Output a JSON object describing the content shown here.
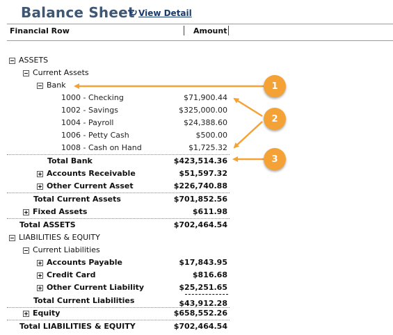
{
  "header": {
    "title": "Balance Sheet",
    "view_detail": "View Detail"
  },
  "columns": {
    "financial_row": "Financial Row",
    "amount": "Amount"
  },
  "rows": [
    {
      "label": "ASSETS",
      "amount": "",
      "toggle": "minus",
      "bold": false,
      "caps": true
    },
    {
      "label": "Current Assets",
      "amount": "",
      "toggle": "minus"
    },
    {
      "label": "Bank",
      "amount": "",
      "toggle": "minus"
    },
    {
      "label": "1000 - Checking",
      "amount": "$71,900.44"
    },
    {
      "label": "1002 - Savings",
      "amount": "$325,000.00"
    },
    {
      "label": "1004 - Payroll",
      "amount": "$24,388.60"
    },
    {
      "label": "1006 - Petty Cash",
      "amount": "$500.00"
    },
    {
      "label": "1008 - Cash on Hand",
      "amount": "$1,725.32"
    },
    {
      "label": "Total Bank",
      "amount": "$423,514.36"
    },
    {
      "label": "Accounts Receivable",
      "amount": "$51,597.32",
      "toggle": "plus"
    },
    {
      "label": "Other Current Asset",
      "amount": "$226,740.88",
      "toggle": "plus"
    },
    {
      "label": "Total Current Assets",
      "amount": "$701,852.56"
    },
    {
      "label": "Fixed Assets",
      "amount": "$611.98",
      "toggle": "plus"
    },
    {
      "label": "Total ASSETS",
      "amount": "$702,464.54"
    },
    {
      "label": "LIABILITIES & EQUITY",
      "amount": "",
      "toggle": "minus"
    },
    {
      "label": "Current Liabilities",
      "amount": "",
      "toggle": "minus"
    },
    {
      "label": "Accounts Payable",
      "amount": "$17,843.95",
      "toggle": "plus"
    },
    {
      "label": "Credit Card",
      "amount": "$816.68",
      "toggle": "plus"
    },
    {
      "label": "Other Current Liability",
      "amount": "$25,251.65",
      "toggle": "plus"
    },
    {
      "label": "Total Current Liabilities",
      "amount": "$43,912.28"
    },
    {
      "label": "Equity",
      "amount": "$658,552.26",
      "toggle": "plus"
    },
    {
      "label": "Total LIABILITIES & EQUITY",
      "amount": "$702,464.54"
    }
  ],
  "callouts": [
    "1",
    "2",
    "3"
  ],
  "colors": {
    "title": "#3f5773",
    "callout": "#f4a236",
    "link": "#1a3a6e"
  }
}
